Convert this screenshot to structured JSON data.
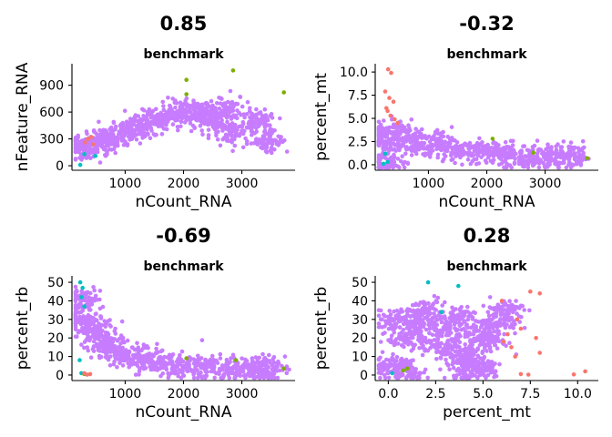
{
  "colors": {
    "main": "#c77cff",
    "red": "#f8766d",
    "green": "#7cae00",
    "cyan": "#00bfc4",
    "axis": "#000000"
  },
  "chart_data": [
    {
      "type": "scatter",
      "correlation": "0.85",
      "title": "benchmark",
      "xlabel": "nCount_RNA",
      "ylabel": "nFeature_RNA",
      "xlim": [
        150,
        3850
      ],
      "ylim": [
        -20,
        1110
      ],
      "xticks": [
        1000,
        2000,
        3000
      ],
      "yticks": [
        0,
        300,
        600,
        900
      ],
      "xtick_labels": [
        "1000",
        "2000",
        "3000"
      ],
      "ytick_labels": [
        "0",
        "300",
        "600",
        "900"
      ],
      "series": [
        {
          "color": "#c77cff",
          "kind": "cloud",
          "points": [
            [
              300,
              180
            ],
            [
              500,
              250
            ],
            [
              800,
              320
            ],
            [
              1000,
              380
            ],
            [
              1200,
              430
            ],
            [
              1500,
              520
            ],
            [
              1800,
              560
            ],
            [
              2100,
              600
            ],
            [
              2300,
              560
            ],
            [
              2500,
              470
            ],
            [
              2900,
              390
            ],
            [
              3300,
              510
            ],
            [
              3450,
              280
            ],
            [
              2750,
              650
            ]
          ]
        },
        {
          "color": "#7cae00",
          "points": [
            [
              2050,
              960
            ],
            [
              2850,
              1065
            ],
            [
              3720,
              820
            ],
            [
              2050,
              800
            ]
          ]
        },
        {
          "color": "#f8766d",
          "points": [
            [
              360,
              300
            ],
            [
              420,
              320
            ],
            [
              310,
              260
            ],
            [
              450,
              240
            ]
          ]
        },
        {
          "color": "#00bfc4",
          "points": [
            [
              230,
              10
            ],
            [
              490,
              110
            ],
            [
              300,
              130
            ]
          ]
        }
      ]
    },
    {
      "type": "scatter",
      "correlation": "-0.32",
      "title": "benchmark",
      "xlabel": "nCount_RNA",
      "ylabel": "percent_mt",
      "xlim": [
        150,
        3850
      ],
      "ylim": [
        -0.3,
        10.6
      ],
      "xticks": [
        1000,
        2000,
        3000
      ],
      "yticks": [
        0,
        2.5,
        5,
        7.5,
        10
      ],
      "xtick_labels": [
        "1000",
        "2000",
        "3000"
      ],
      "ytick_labels": [
        "0.0",
        "2.5",
        "5.0",
        "7.5",
        "10.0"
      ],
      "series": [
        {
          "color": "#c77cff",
          "kind": "cloud",
          "points": [
            [
              250,
              2.5
            ],
            [
              400,
              3.5
            ],
            [
              600,
              2.8
            ],
            [
              900,
              2.2
            ],
            [
              1200,
              1.9
            ],
            [
              1600,
              1.5
            ],
            [
              2000,
              1.3
            ],
            [
              2400,
              1.0
            ],
            [
              2800,
              0.9
            ],
            [
              3200,
              0.8
            ],
            [
              3500,
              0.9
            ],
            [
              300,
              0.2
            ]
          ]
        },
        {
          "color": "#f8766d",
          "points": [
            [
              310,
              10.3
            ],
            [
              360,
              9.9
            ],
            [
              260,
              7.9
            ],
            [
              330,
              7.2
            ],
            [
              400,
              6.8
            ],
            [
              280,
              6.1
            ],
            [
              350,
              5.3
            ],
            [
              420,
              4.9
            ],
            [
              470,
              4.5
            ],
            [
              300,
              5.8
            ]
          ]
        },
        {
          "color": "#7cae00",
          "points": [
            [
              2100,
              2.8
            ],
            [
              2800,
              1.3
            ],
            [
              3720,
              0.7
            ]
          ]
        },
        {
          "color": "#00bfc4",
          "points": [
            [
              230,
              0.1
            ],
            [
              300,
              0.3
            ],
            [
              260,
              1.2
            ]
          ]
        }
      ]
    },
    {
      "type": "scatter",
      "correlation": "-0.69",
      "title": "benchmark",
      "xlabel": "nCount_RNA",
      "ylabel": "percent_rb",
      "xlim": [
        150,
        3850
      ],
      "ylim": [
        -1.5,
        52
      ],
      "xticks": [
        1000,
        2000,
        3000
      ],
      "yticks": [
        0,
        10,
        20,
        30,
        40,
        50
      ],
      "xtick_labels": [
        "1000",
        "2000",
        "3000"
      ],
      "ytick_labels": [
        "0",
        "10",
        "20",
        "30",
        "40",
        "50"
      ],
      "series": [
        {
          "color": "#c77cff",
          "kind": "cloud",
          "points": [
            [
              250,
              40
            ],
            [
              300,
              30
            ],
            [
              400,
              25
            ],
            [
              600,
              18
            ],
            [
              800,
              14
            ],
            [
              1000,
              11
            ],
            [
              1300,
              8
            ],
            [
              1600,
              6
            ],
            [
              2000,
              5
            ],
            [
              2400,
              4
            ],
            [
              2800,
              3
            ],
            [
              3200,
              3.5
            ],
            [
              3400,
              3
            ]
          ]
        },
        {
          "color": "#00bfc4",
          "points": [
            [
              230,
              50
            ],
            [
              270,
              47
            ],
            [
              300,
              37
            ],
            [
              250,
              42
            ],
            [
              220,
              8
            ],
            [
              250,
              1
            ]
          ]
        },
        {
          "color": "#7cae00",
          "points": [
            [
              2050,
              9
            ],
            [
              2900,
              8
            ],
            [
              3720,
              3.5
            ],
            [
              300,
              0.5
            ]
          ]
        },
        {
          "color": "#f8766d",
          "points": [
            [
              350,
              0.2
            ],
            [
              400,
              0.5
            ],
            [
              300,
              1.0
            ]
          ]
        }
      ]
    },
    {
      "type": "scatter",
      "correlation": "0.28",
      "title": "benchmark",
      "xlabel": "percent_mt",
      "ylabel": "percent_rb",
      "xlim": [
        -0.5,
        10.9
      ],
      "ylim": [
        -1.5,
        52
      ],
      "xticks": [
        0,
        2.5,
        5,
        7.5,
        10
      ],
      "yticks": [
        0,
        10,
        20,
        30,
        40,
        50
      ],
      "xtick_labels": [
        "0.0",
        "2.5",
        "5.0",
        "7.5",
        "10.0"
      ],
      "ytick_labels": [
        "0",
        "10",
        "20",
        "30",
        "40",
        "50"
      ],
      "series": [
        {
          "color": "#c77cff",
          "kind": "cloud",
          "points": [
            [
              0.3,
              5
            ],
            [
              0.3,
              30
            ],
            [
              1.0,
              20
            ],
            [
              1.5,
              28
            ],
            [
              2.0,
              35
            ],
            [
              2.5,
              25
            ],
            [
              3.0,
              15
            ],
            [
              3.5,
              30
            ],
            [
              4.0,
              10
            ],
            [
              4.5,
              22
            ],
            [
              5.0,
              5
            ],
            [
              5.3,
              18
            ],
            [
              5.8,
              28
            ],
            [
              6.1,
              35
            ],
            [
              1.0,
              2
            ],
            [
              4.0,
              2
            ]
          ]
        },
        {
          "color": "#f8766d",
          "points": [
            [
              6.1,
              18
            ],
            [
              6.3,
              22
            ],
            [
              6.5,
              15
            ],
            [
              6.8,
              30
            ],
            [
              6.0,
              40
            ],
            [
              7.0,
              25
            ],
            [
              7.5,
              45
            ],
            [
              8.0,
              12
            ],
            [
              7.8,
              20
            ],
            [
              7.0,
              0.5
            ],
            [
              7.4,
              0.2
            ],
            [
              9.8,
              0.3
            ],
            [
              10.4,
              2
            ],
            [
              8.0,
              44
            ],
            [
              6.7,
              10
            ]
          ]
        },
        {
          "color": "#00bfc4",
          "points": [
            [
              2.1,
              50
            ],
            [
              3.7,
              48
            ],
            [
              2.8,
              34
            ],
            [
              0.2,
              1
            ]
          ]
        },
        {
          "color": "#7cae00",
          "points": [
            [
              1.0,
              3.5
            ],
            [
              0.8,
              2.5
            ]
          ]
        }
      ]
    }
  ]
}
